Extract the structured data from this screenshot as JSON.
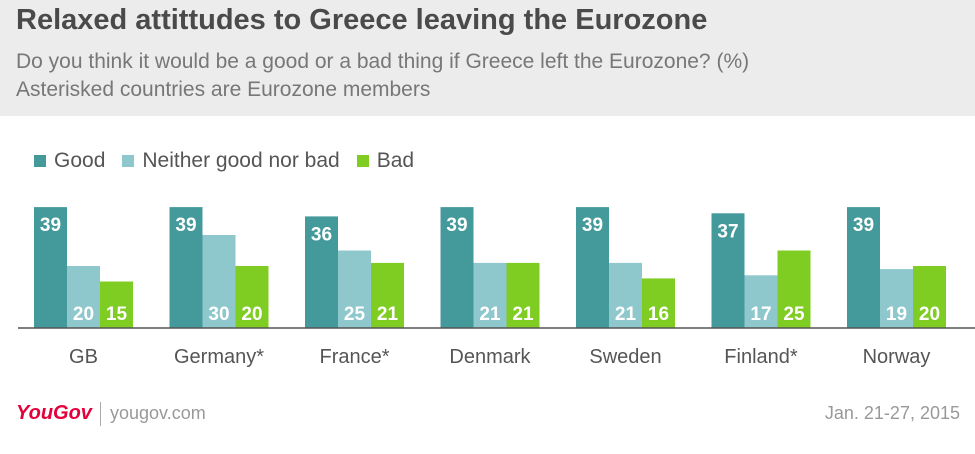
{
  "header": {
    "title": "Relaxed attittudes to Greece leaving the Eurozone",
    "subtitle_line1": "Do you think it would be a good or a bad thing if Greece left the Eurozone? (%)",
    "subtitle_line2": "Asterisked countries are Eurozone members"
  },
  "colors": {
    "good": "#449a9b",
    "neither": "#8ec7cc",
    "bad": "#7fcc22",
    "axis": "#555555"
  },
  "chart_data": {
    "type": "bar",
    "title": "Relaxed attittudes to Greece leaving the Eurozone",
    "subtitle": "Do you think it would be a good or a bad thing if Greece left the Eurozone? (%)",
    "categories": [
      "GB",
      "Germany*",
      "France*",
      "Denmark",
      "Sweden",
      "Finland*",
      "Norway"
    ],
    "series": [
      {
        "name": "Good",
        "values": [
          39,
          39,
          36,
          39,
          39,
          37,
          39
        ]
      },
      {
        "name": "Neither good nor bad",
        "values": [
          20,
          30,
          25,
          21,
          21,
          17,
          19
        ]
      },
      {
        "name": "Bad",
        "values": [
          15,
          20,
          21,
          21,
          16,
          25,
          20
        ]
      }
    ],
    "ylim": [
      0,
      40
    ],
    "legend_position": "top-left",
    "grid": false
  },
  "footer": {
    "brand": "YouGov",
    "site": "yougov.com",
    "date": "Jan. 21-27, 2015"
  }
}
